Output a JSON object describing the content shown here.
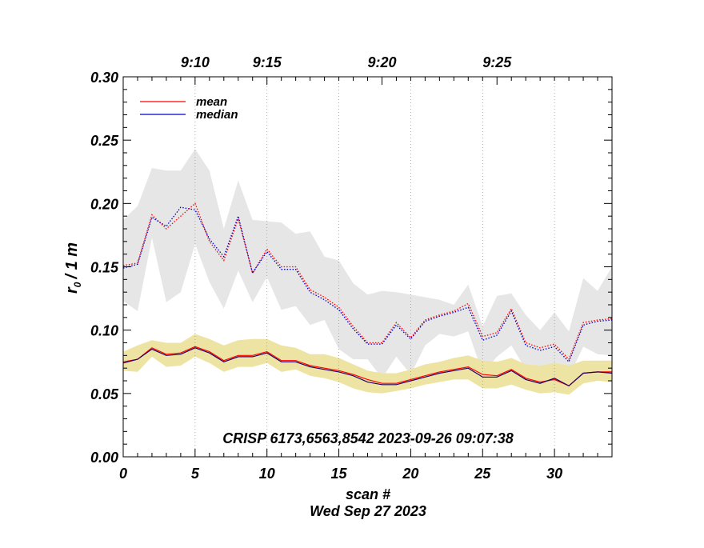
{
  "chart_data": {
    "type": "line",
    "title": "CRISP 6173,6563,8542 2023-09-26 09:07:38",
    "xlabel": "scan #",
    "date_label": "Wed Sep 27 2023",
    "ylabel_main": "r",
    "ylabel_sub": "0",
    "ylabel_unit": "/ 1 m",
    "xlim": [
      0,
      34
    ],
    "ylim": [
      0.0,
      0.3
    ],
    "x_ticks": [
      0,
      5,
      10,
      15,
      20,
      25,
      30
    ],
    "x_tick_labels": [
      "0",
      "5",
      "10",
      "15",
      "20",
      "25",
      "30"
    ],
    "y_ticks": [
      0.0,
      0.05,
      0.1,
      0.15,
      0.2,
      0.25,
      0.3
    ],
    "y_tick_labels": [
      "0.00",
      "0.05",
      "0.10",
      "0.15",
      "0.20",
      "0.25",
      "0.30"
    ],
    "top_time_ticks": [
      {
        "x": 5,
        "label": "9:10"
      },
      {
        "x": 10,
        "label": "9:15"
      },
      {
        "x": 18,
        "label": "9:20"
      },
      {
        "x": 26,
        "label": "9:25"
      }
    ],
    "time_gridlines_x": [
      5,
      10,
      15,
      20,
      25,
      30
    ],
    "legend": [
      {
        "label": "mean",
        "color": "#ff0000"
      },
      {
        "label": "median",
        "color": "#0000cc"
      }
    ],
    "colors": {
      "mean": "#ff0000",
      "median": "#0000cc",
      "median_low": "#220066",
      "band_high": "#e6e6e6",
      "band_low": "#ede4a4"
    },
    "x": [
      0,
      1,
      2,
      3,
      4,
      5,
      6,
      7,
      8,
      9,
      10,
      11,
      12,
      13,
      14,
      15,
      16,
      17,
      18,
      19,
      20,
      21,
      22,
      23,
      24,
      25,
      26,
      27,
      28,
      29,
      30,
      31,
      32,
      33,
      34
    ],
    "series": [
      {
        "name": "mean (high)",
        "style": "dotted",
        "color": "#ff0000",
        "values": [
          0.151,
          0.153,
          0.191,
          0.18,
          0.19,
          0.2,
          0.17,
          0.155,
          0.188,
          0.145,
          0.164,
          0.15,
          0.15,
          0.132,
          0.126,
          0.118,
          0.103,
          0.09,
          0.09,
          0.106,
          0.094,
          0.108,
          0.112,
          0.115,
          0.121,
          0.095,
          0.098,
          0.117,
          0.09,
          0.086,
          0.089,
          0.077,
          0.106,
          0.108,
          0.109
        ]
      },
      {
        "name": "median (high)",
        "style": "dotted",
        "color": "#0000cc",
        "values": [
          0.149,
          0.152,
          0.189,
          0.182,
          0.197,
          0.195,
          0.172,
          0.158,
          0.19,
          0.145,
          0.162,
          0.148,
          0.148,
          0.13,
          0.124,
          0.116,
          0.101,
          0.089,
          0.089,
          0.104,
          0.093,
          0.107,
          0.111,
          0.114,
          0.118,
          0.092,
          0.096,
          0.115,
          0.088,
          0.084,
          0.087,
          0.075,
          0.104,
          0.107,
          0.108
        ]
      },
      {
        "name": "mean (low)",
        "style": "solid",
        "color": "#ff0000",
        "values": [
          0.075,
          0.077,
          0.086,
          0.081,
          0.082,
          0.087,
          0.083,
          0.076,
          0.08,
          0.08,
          0.083,
          0.076,
          0.076,
          0.072,
          0.07,
          0.068,
          0.065,
          0.061,
          0.058,
          0.058,
          0.061,
          0.064,
          0.067,
          0.069,
          0.071,
          0.065,
          0.064,
          0.069,
          0.062,
          0.059,
          0.061,
          0.056,
          0.066,
          0.067,
          0.067
        ]
      },
      {
        "name": "median (low)",
        "style": "solid",
        "color": "#220066",
        "values": [
          0.074,
          0.077,
          0.085,
          0.08,
          0.081,
          0.086,
          0.082,
          0.075,
          0.079,
          0.079,
          0.082,
          0.075,
          0.075,
          0.071,
          0.069,
          0.067,
          0.064,
          0.059,
          0.057,
          0.057,
          0.06,
          0.063,
          0.066,
          0.068,
          0.07,
          0.063,
          0.063,
          0.068,
          0.061,
          0.058,
          0.062,
          0.056,
          0.066,
          0.067,
          0.066
        ]
      }
    ],
    "bands": [
      {
        "name": "high spread",
        "color": "#e6e6e6",
        "upper": [
          0.187,
          0.198,
          0.228,
          0.226,
          0.226,
          0.243,
          0.226,
          0.18,
          0.218,
          0.187,
          0.186,
          0.185,
          0.176,
          0.178,
          0.158,
          0.155,
          0.137,
          0.128,
          0.131,
          0.13,
          0.128,
          0.126,
          0.124,
          0.12,
          0.136,
          0.103,
          0.127,
          0.129,
          0.112,
          0.1,
          0.114,
          0.099,
          0.141,
          0.131,
          0.15
        ],
        "lower": [
          0.123,
          0.115,
          0.173,
          0.122,
          0.13,
          0.168,
          0.138,
          0.117,
          0.147,
          0.122,
          0.142,
          0.116,
          0.119,
          0.104,
          0.108,
          0.085,
          0.077,
          0.077,
          0.062,
          0.079,
          0.065,
          0.088,
          0.097,
          0.095,
          0.099,
          0.066,
          0.079,
          0.088,
          0.069,
          0.071,
          0.065,
          0.063,
          0.087,
          0.081,
          0.08
        ]
      },
      {
        "name": "low spread",
        "color": "#ede4a4",
        "upper": [
          0.083,
          0.088,
          0.092,
          0.09,
          0.09,
          0.097,
          0.093,
          0.088,
          0.092,
          0.093,
          0.093,
          0.088,
          0.086,
          0.081,
          0.081,
          0.078,
          0.073,
          0.068,
          0.066,
          0.066,
          0.069,
          0.073,
          0.075,
          0.078,
          0.08,
          0.076,
          0.075,
          0.078,
          0.073,
          0.072,
          0.074,
          0.072,
          0.076,
          0.076,
          0.076
        ]
      },
      {
        "name": "low spread bottom",
        "color": "#ede4a4",
        "lower": [
          0.068,
          0.067,
          0.079,
          0.071,
          0.072,
          0.079,
          0.074,
          0.067,
          0.071,
          0.071,
          0.074,
          0.067,
          0.069,
          0.064,
          0.062,
          0.059,
          0.054,
          0.051,
          0.05,
          0.052,
          0.054,
          0.057,
          0.059,
          0.061,
          0.061,
          0.054,
          0.054,
          0.057,
          0.053,
          0.05,
          0.051,
          0.049,
          0.058,
          0.06,
          0.059
        ]
      }
    ]
  }
}
